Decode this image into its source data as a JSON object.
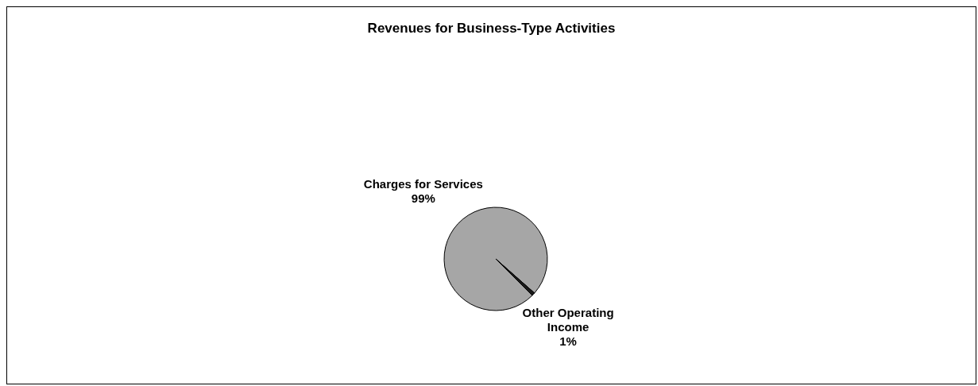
{
  "chart_data": {
    "type": "pie",
    "title": "Revenues for Business-Type Activities",
    "categories": [
      "Charges for Services",
      "Other Operating Income"
    ],
    "values": [
      99,
      1
    ],
    "value_labels": [
      "99%",
      "1%"
    ],
    "colors": [
      "#a6a6a6",
      "#1a1a1a"
    ]
  }
}
